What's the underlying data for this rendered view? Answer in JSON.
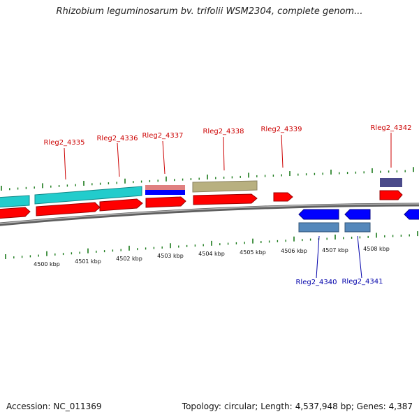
{
  "title": "Rhizobium leguminosarum bv. trifolii WSM2304, complete genom...",
  "footer": {
    "accession_label": "Accession:",
    "accession": "NC_011369",
    "topology_label": "Topology:",
    "topology": "circular",
    "length_label": "Length:",
    "length": "4,537,948 bp",
    "genes_label": "Genes:",
    "genes": "4,387"
  },
  "colors": {
    "backbone": "#7f7f7f",
    "tick": "#1a7a1a",
    "forward_cds": "#ff0000",
    "reverse_cds": "#0000ff",
    "forward_label": "#cc0000",
    "reverse_label": "#0000aa",
    "feature_cyan": "#22cccc",
    "feature_salmon": "#e08080",
    "feature_khaki": "#b8b080",
    "feature_navy": "#4a4a8a",
    "feature_steel": "#5588bb"
  },
  "scale": {
    "unit": "kbp",
    "labels": [
      "4500 kbp",
      "4501 kbp",
      "4502 kbp",
      "4503 kbp",
      "4504 kbp",
      "4505 kbp",
      "4506 kbp",
      "4507 kbp",
      "4508 kbp"
    ]
  },
  "genes": [
    {
      "name": "Rleg2_4335",
      "strand": "+"
    },
    {
      "name": "Rleg2_4336",
      "strand": "+"
    },
    {
      "name": "Rleg2_4337",
      "strand": "+"
    },
    {
      "name": "Rleg2_4338",
      "strand": "+"
    },
    {
      "name": "Rleg2_4339",
      "strand": "+"
    },
    {
      "name": "Rleg2_4342",
      "strand": "+"
    },
    {
      "name": "Rleg2_4340",
      "strand": "-"
    },
    {
      "name": "Rleg2_4341",
      "strand": "-"
    }
  ]
}
